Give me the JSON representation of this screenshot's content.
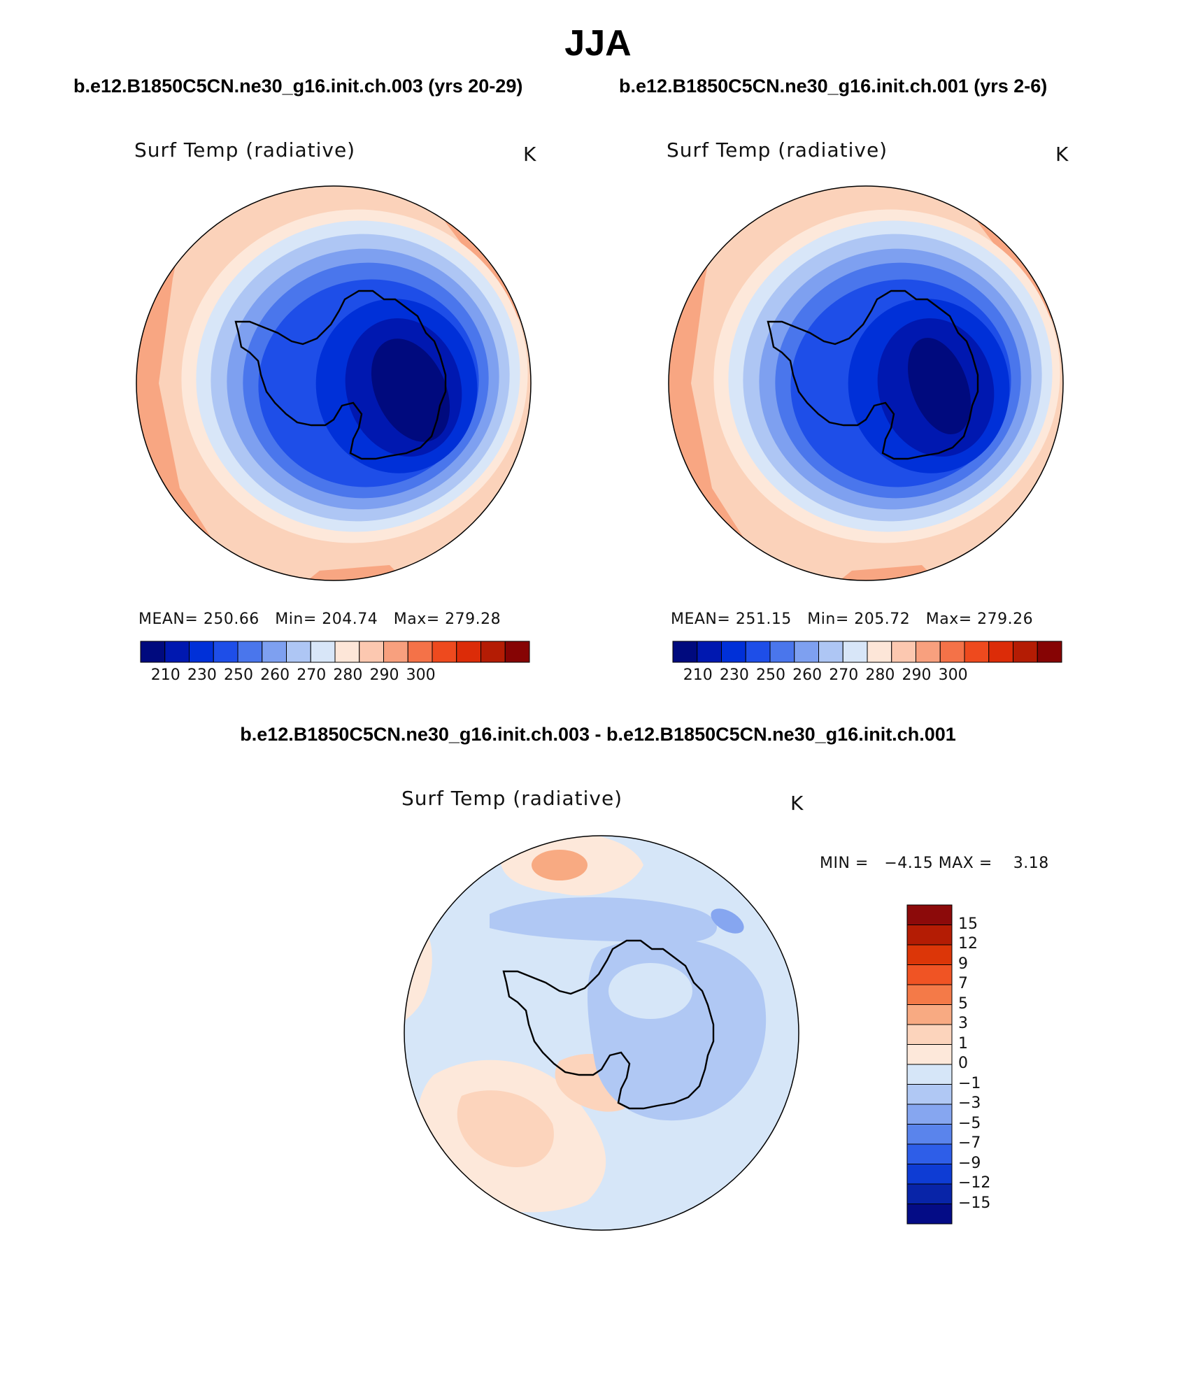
{
  "title": "JJA",
  "panels": [
    {
      "case": "b.e12.B1850C5CN.ne30_g16.init.ch.003 (yrs 20-29)",
      "variable": "Surf Temp (radiative)",
      "units": "K",
      "mean_label": "MEAN=",
      "mean": "250.66",
      "min_label": "Min=",
      "min": "204.74",
      "max_label": "Max=",
      "max": "279.28"
    },
    {
      "case": "b.e12.B1850C5CN.ne30_g16.init.ch.001 (yrs 2-6)",
      "variable": "Surf Temp (radiative)",
      "units": "K",
      "mean_label": "MEAN=",
      "mean": "251.15",
      "min_label": "Min=",
      "min": "205.72",
      "max_label": "Max=",
      "max": "279.26"
    }
  ],
  "colorbar": {
    "colors": [
      "#000a7e",
      "#0018b0",
      "#0030d8",
      "#1e4ee8",
      "#4a76ec",
      "#7ea0f0",
      "#aec6f4",
      "#d8e6f8",
      "#fde6d8",
      "#fcc8b0",
      "#f8a07e",
      "#f47248",
      "#ee4a1e",
      "#dc2c08",
      "#b41c04",
      "#860404"
    ],
    "tick_labels": [
      "210",
      "230",
      "250",
      "260",
      "270",
      "280",
      "290",
      "300"
    ]
  },
  "difference": {
    "title": "b.e12.B1850C5CN.ne30_g16.init.ch.003 - b.e12.B1850C5CN.ne30_g16.init.ch.001",
    "variable": "Surf Temp (radiative)",
    "units": "K",
    "min_label": "MIN =",
    "min": "−4.15",
    "max_label": "MAX =",
    "max": "3.18",
    "colors_top_to_bottom": [
      "#8c0a0a",
      "#b41c04",
      "#dc3608",
      "#f05424",
      "#f47a48",
      "#f8aa82",
      "#fcd4bc",
      "#fde8da",
      "#d6e6f8",
      "#b0c8f4",
      "#86a6f0",
      "#5a84ec",
      "#2e5ee8",
      "#0e3cd4",
      "#0824a8",
      "#040c86"
    ],
    "tick_labels": [
      "15",
      "12",
      "9",
      "7",
      "5",
      "3",
      "1",
      "0",
      "−1",
      "−3",
      "−5",
      "−7",
      "−9",
      "−12",
      "−15"
    ]
  }
}
